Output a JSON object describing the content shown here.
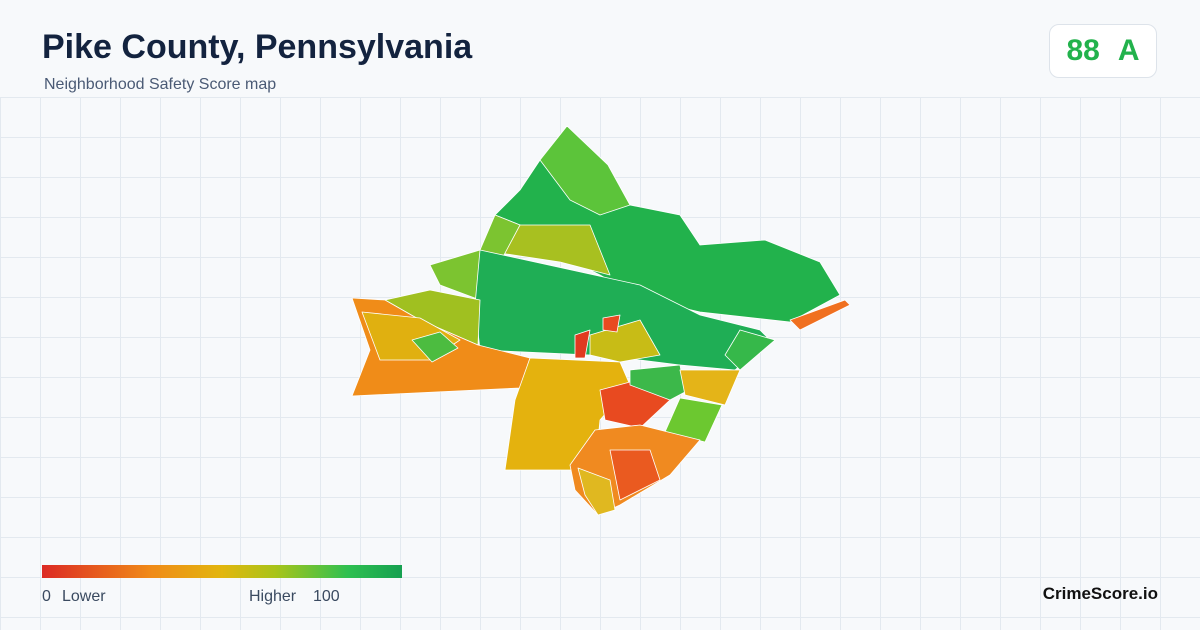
{
  "header": {
    "title": "Pike County, Pennsylvania",
    "subtitle": "Neighborhood Safety Score map"
  },
  "score": {
    "value": 88,
    "grade": "A"
  },
  "legend": {
    "min": 0,
    "low_label": "Lower",
    "high_label": "Higher",
    "max": 100
  },
  "brand": "CrimeScore.io"
}
